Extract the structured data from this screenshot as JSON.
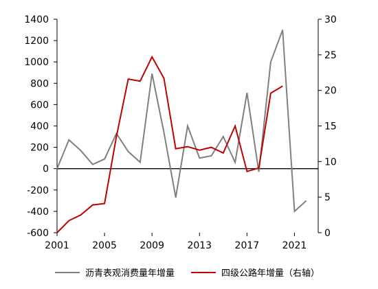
{
  "chart_data": {
    "type": "line",
    "x": [
      2001,
      2002,
      2003,
      2004,
      2005,
      2006,
      2007,
      2008,
      2009,
      2010,
      2011,
      2012,
      2013,
      2014,
      2015,
      2016,
      2017,
      2018,
      2019,
      2020,
      2021,
      2022
    ],
    "x_ticks": [
      "2001",
      "2005",
      "2009",
      "2013",
      "2017",
      "2021"
    ],
    "y_left_ticks": [
      "1400",
      "1200",
      "1000",
      "800",
      "600",
      "400",
      "200",
      "0",
      "-200",
      "-400",
      "-600"
    ],
    "y_right_ticks": [
      "30",
      "25",
      "20",
      "15",
      "10",
      "5",
      "0"
    ],
    "ylim_left": [
      -600,
      1400
    ],
    "ylim_right": [
      0,
      30
    ],
    "xlim": [
      2001,
      2023
    ],
    "grid": false,
    "legend_position": "bottom",
    "series": [
      {
        "name": "沥青表观消费量年增量",
        "axis": "left",
        "color": "#7f7f7f",
        "values": [
          0,
          270,
          170,
          40,
          90,
          330,
          160,
          60,
          890,
          340,
          -270,
          400,
          100,
          120,
          300,
          60,
          710,
          -30,
          1000,
          1300,
          -400,
          -300
        ]
      },
      {
        "name": "四级公路年增量（右轴）",
        "axis": "right",
        "color": "#c00000",
        "values": [
          0,
          1.7,
          2.5,
          3.9,
          4.1,
          13.5,
          21.6,
          21.3,
          24.7,
          21.7,
          11.8,
          12.1,
          11.6,
          12.0,
          11.2,
          15.0,
          8.6,
          9.1,
          19.6,
          20.6,
          null,
          null
        ]
      }
    ]
  }
}
